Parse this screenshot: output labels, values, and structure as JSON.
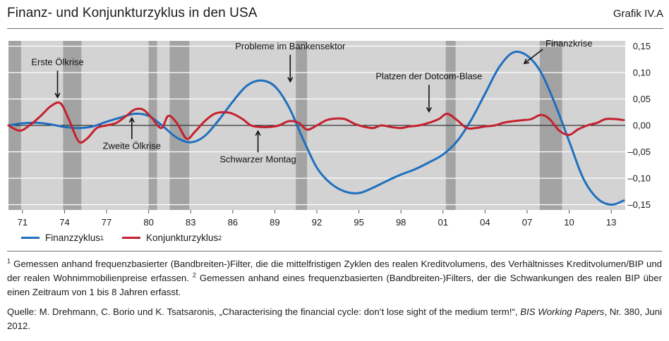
{
  "header": {
    "title": "Finanz- und Konjunkturzyklus in den USA",
    "figure_label": "Grafik IV.A"
  },
  "legend": {
    "items": [
      {
        "name": "Finanzzyklus",
        "sup": "1",
        "color": "#1f6fbf"
      },
      {
        "name": "Konjunkturzyklus",
        "sup": "2",
        "color": "#c4212e"
      }
    ]
  },
  "notes": {
    "fn1_mark": "1",
    "fn1_text": "Gemessen anhand frequenzbasierter (Bandbreiten-)Filter, die die mittelfristigen Zyklen des realen Kreditvolumens, des Verhältnisses Kreditvolumen/BIP und der realen Wohnimmobilienpreise erfassen.",
    "fn2_mark": "2",
    "fn2_text": "Gemessen anhand eines frequenzbasierten (Bandbreiten-)Filters, der die Schwankungen des realen BIP über einen Zeitraum von 1 bis 8 Jahren erfasst.",
    "source_prefix": "Quelle: M. Drehmann, C. Borio und K. Tsatsaronis, „Characterising the financial cycle: don’t lose sight of the medium term!“, ",
    "source_series": "BIS Working Papers",
    "source_suffix": ", Nr. 380, Juni 2012."
  },
  "chart_data": {
    "type": "line",
    "x_range": [
      1970,
      2014
    ],
    "ylim": [
      -0.16,
      0.16
    ],
    "y_ticks": [
      0.15,
      0.1,
      0.05,
      0.0,
      -0.05,
      -0.1,
      -0.15
    ],
    "y_tick_labels": [
      "0,15",
      "0,10",
      "0,05",
      "0,00",
      "–0,05",
      "–0,10",
      "–0,15"
    ],
    "x_ticks": [
      1971,
      1974,
      1977,
      1980,
      1983,
      1986,
      1989,
      1992,
      1995,
      1998,
      2001,
      2004,
      2007,
      2010,
      2013
    ],
    "x_tick_labels": [
      "71",
      "74",
      "77",
      "80",
      "83",
      "86",
      "89",
      "92",
      "95",
      "98",
      "01",
      "04",
      "07",
      "10",
      "13"
    ],
    "recessions": [
      [
        1970.0,
        1970.9
      ],
      [
        1973.9,
        1975.2
      ],
      [
        1980.0,
        1980.6
      ],
      [
        1981.5,
        1982.9
      ],
      [
        1990.5,
        1991.3
      ],
      [
        2001.2,
        2001.9
      ],
      [
        2007.9,
        2009.5
      ]
    ],
    "series": [
      {
        "name": "Finanzzyklus",
        "color": "#1f6fbf",
        "x": [
          1970.0,
          1971,
          1972,
          1973,
          1974,
          1975,
          1976,
          1977,
          1978,
          1979,
          1980,
          1981,
          1982,
          1983,
          1984,
          1985,
          1986,
          1987,
          1988,
          1989,
          1990,
          1991,
          1992,
          1993,
          1994,
          1995,
          1996,
          1997,
          1998,
          1999,
          2000,
          2001,
          2002,
          2003,
          2004,
          2005,
          2006,
          2007,
          2008,
          2009,
          2010,
          2011,
          2012,
          2013,
          2013.9
        ],
        "values": [
          0.0,
          0.004,
          0.005,
          0.002,
          -0.003,
          -0.005,
          -0.002,
          0.007,
          0.015,
          0.022,
          0.018,
          -0.001,
          -0.023,
          -0.032,
          -0.02,
          0.01,
          0.045,
          0.075,
          0.085,
          0.074,
          0.035,
          -0.025,
          -0.08,
          -0.11,
          -0.125,
          -0.128,
          -0.118,
          -0.105,
          -0.093,
          -0.083,
          -0.07,
          -0.055,
          -0.03,
          0.01,
          0.06,
          0.11,
          0.138,
          0.132,
          0.1,
          0.04,
          -0.03,
          -0.1,
          -0.138,
          -0.15,
          -0.142
        ]
      },
      {
        "name": "Konjunkturzyklus",
        "color": "#c4212e",
        "x": [
          1970.0,
          1970.8,
          1971.5,
          1972.3,
          1973.0,
          1973.7,
          1974.3,
          1975.0,
          1975.6,
          1976.3,
          1977.0,
          1977.7,
          1978.4,
          1979.0,
          1979.6,
          1980.2,
          1980.9,
          1981.4,
          1982.0,
          1982.7,
          1983.3,
          1984.0,
          1984.7,
          1985.4,
          1986.0,
          1986.7,
          1987.3,
          1988.0,
          1988.6,
          1989.3,
          1990.0,
          1990.7,
          1991.3,
          1992.0,
          1992.7,
          1993.4,
          1994.0,
          1994.7,
          1995.3,
          1996.0,
          1996.6,
          1997.3,
          1998.0,
          1998.6,
          1999.3,
          2000.0,
          2000.7,
          2001.3,
          2002.0,
          2002.7,
          2003.3,
          2004.0,
          2004.7,
          2005.3,
          2006.0,
          2006.7,
          2007.3,
          2008.0,
          2008.6,
          2009.3,
          2010.0,
          2010.6,
          2011.3,
          2012.0,
          2012.6,
          2013.3,
          2013.9
        ],
        "values": [
          0.0,
          -0.01,
          0.0,
          0.018,
          0.036,
          0.042,
          0.012,
          -0.03,
          -0.025,
          -0.005,
          0.0,
          0.005,
          0.018,
          0.03,
          0.03,
          0.015,
          -0.005,
          0.018,
          0.005,
          -0.025,
          -0.012,
          0.008,
          0.022,
          0.025,
          0.022,
          0.012,
          0.0,
          -0.003,
          -0.003,
          0.0,
          0.008,
          0.005,
          -0.008,
          0.0,
          0.01,
          0.013,
          0.012,
          0.003,
          -0.002,
          -0.005,
          0.0,
          -0.003,
          -0.005,
          -0.002,
          0.0,
          0.005,
          0.012,
          0.022,
          0.01,
          -0.005,
          -0.005,
          -0.002,
          0.0,
          0.005,
          0.008,
          0.01,
          0.012,
          0.02,
          0.012,
          -0.01,
          -0.018,
          -0.008,
          0.0,
          0.005,
          0.012,
          0.012,
          0.01
        ]
      }
    ],
    "annotations": [
      {
        "text": "Erste Ölkrise",
        "x": 1973.5,
        "y": 0.045,
        "dir": "down"
      },
      {
        "text": "Zweite Ölkrise",
        "x": 1978.8,
        "y": 0.022,
        "dir": "up"
      },
      {
        "text": "Schwarzer Montag",
        "x": 1987.8,
        "y": -0.003,
        "dir": "up"
      },
      {
        "text": "Probleme im Bankensektor",
        "x": 1990.1,
        "y": 0.075,
        "dir": "down"
      },
      {
        "text": "Platzen der Dotcom-Blase",
        "x": 2000.0,
        "y": 0.018,
        "dir": "down"
      },
      {
        "text": "Finanzkrise",
        "x": 2006.5,
        "y": 0.12,
        "dir": "left"
      }
    ]
  }
}
